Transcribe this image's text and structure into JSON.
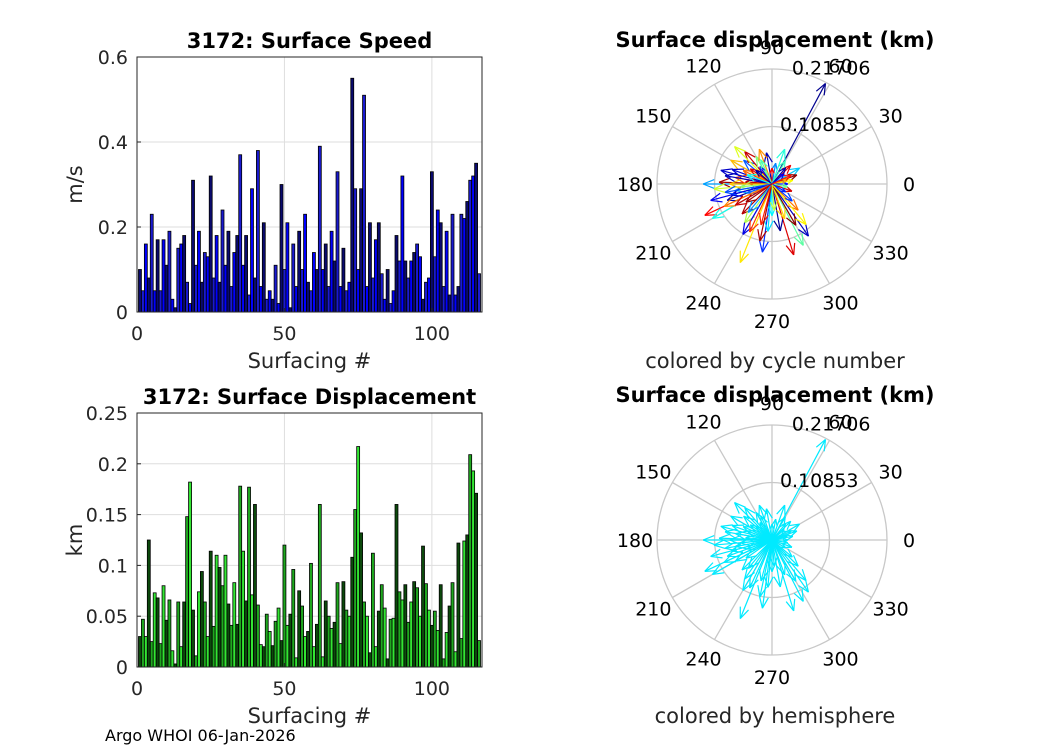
{
  "footer": "Argo WHOI 06-Jan-2026",
  "chart_data": [
    {
      "type": "bar",
      "title": "3172: Surface Speed",
      "xlabel": "Surfacing #",
      "ylabel": "m/s",
      "xlim": [
        0,
        117
      ],
      "ylim": [
        0,
        0.6
      ],
      "xticks": [
        "0",
        "50",
        "100"
      ],
      "yticks": [
        "0",
        "0.2",
        "0.4",
        "0.6"
      ],
      "grid": true,
      "colors": [
        "#0a0a6e",
        "#1a1ad0",
        "#0000ff"
      ],
      "x": [
        1,
        2,
        3,
        4,
        5,
        6,
        7,
        8,
        9,
        10,
        11,
        12,
        13,
        14,
        15,
        16,
        17,
        18,
        19,
        20,
        21,
        22,
        23,
        24,
        25,
        26,
        27,
        28,
        29,
        30,
        31,
        32,
        33,
        34,
        35,
        36,
        37,
        38,
        39,
        40,
        41,
        42,
        43,
        44,
        45,
        46,
        47,
        48,
        49,
        50,
        51,
        52,
        53,
        54,
        55,
        56,
        57,
        58,
        59,
        60,
        61,
        62,
        63,
        64,
        65,
        66,
        67,
        68,
        69,
        70,
        71,
        72,
        73,
        74,
        75,
        76,
        77,
        78,
        79,
        80,
        81,
        82,
        83,
        84,
        85,
        86,
        87,
        88,
        89,
        90,
        91,
        92,
        93,
        94,
        95,
        96,
        97,
        98,
        99,
        100,
        101,
        102,
        103,
        104,
        105,
        106,
        107,
        108,
        109,
        110,
        111,
        112,
        113,
        114,
        115,
        116
      ],
      "values": [
        0.1,
        0.05,
        0.16,
        0.08,
        0.23,
        0.05,
        0.17,
        0.05,
        0.17,
        0.11,
        0.19,
        0.03,
        0.01,
        0.15,
        0.16,
        0.18,
        0.07,
        0.02,
        0.31,
        0.11,
        0.19,
        0.07,
        0.14,
        0.13,
        0.32,
        0.08,
        0.18,
        0.07,
        0.24,
        0.11,
        0.19,
        0.06,
        0.14,
        0.18,
        0.37,
        0.11,
        0.18,
        0.04,
        0.29,
        0.08,
        0.38,
        0.06,
        0.21,
        0.03,
        0.05,
        0.03,
        0.11,
        0.02,
        0.3,
        0.1,
        0.21,
        0.01,
        0.16,
        0.06,
        0.19,
        0.1,
        0.23,
        0.07,
        0.05,
        0.14,
        0.1,
        0.39,
        0.1,
        0.16,
        0.06,
        0.19,
        0.12,
        0.33,
        0.06,
        0.15,
        0.05,
        0.07,
        0.55,
        0.29,
        0.1,
        0.29,
        0.51,
        0.06,
        0.21,
        0.08,
        0.17,
        0.21,
        0.09,
        0.03,
        0.1,
        0.02,
        0.05,
        0.18,
        0.12,
        0.32,
        0.12,
        0.08,
        0.12,
        0.14,
        0.16,
        0.13,
        0.03,
        0.07,
        0.08,
        0.33,
        0.13,
        0.24,
        0.21,
        0.06,
        0.19,
        0.04,
        0.23,
        0.04,
        0.06,
        0.23,
        0.22,
        0.26,
        0.31,
        0.32,
        0.35,
        0.09
      ]
    },
    {
      "type": "polar",
      "title": "Surface displacement (km)",
      "caption": "colored by cycle number",
      "rlim": [
        0,
        0.21706
      ],
      "rticks": [
        "0.10853",
        "0.21706"
      ],
      "angle_labels": [
        "0",
        "30",
        "60",
        "90",
        "120",
        "150",
        "180",
        "210",
        "240",
        "270",
        "300",
        "330"
      ],
      "colormap": [
        "#00008f",
        "#0000ff",
        "#00ffff",
        "#ffff00",
        "#ff0000",
        "#800000"
      ],
      "vectors_deg_km": [
        [
          62,
          0.215
        ],
        [
          248,
          0.16
        ],
        [
          262,
          0.13
        ],
        [
          287,
          0.14
        ],
        [
          297,
          0.13
        ],
        [
          305,
          0.12
        ],
        [
          315,
          0.07
        ],
        [
          180,
          0.13
        ],
        [
          178,
          0.1
        ],
        [
          185,
          0.11
        ],
        [
          195,
          0.12
        ],
        [
          205,
          0.14
        ],
        [
          210,
          0.13
        ],
        [
          200,
          0.09
        ],
        [
          150,
          0.09
        ],
        [
          140,
          0.07
        ],
        [
          130,
          0.08
        ],
        [
          120,
          0.06
        ],
        [
          160,
          0.08
        ],
        [
          170,
          0.07
        ],
        [
          30,
          0.06
        ],
        [
          20,
          0.05
        ],
        [
          10,
          0.04
        ],
        [
          0,
          0.03
        ],
        [
          45,
          0.05
        ],
        [
          60,
          0.05
        ],
        [
          100,
          0.06
        ],
        [
          110,
          0.07
        ],
        [
          80,
          0.04
        ],
        [
          225,
          0.08
        ],
        [
          235,
          0.09
        ],
        [
          240,
          0.11
        ],
        [
          255,
          0.08
        ],
        [
          270,
          0.06
        ],
        [
          280,
          0.09
        ],
        [
          290,
          0.07
        ],
        [
          320,
          0.05
        ],
        [
          340,
          0.04
        ],
        [
          350,
          0.03
        ],
        [
          165,
          0.1
        ],
        [
          155,
          0.06
        ],
        [
          190,
          0.07
        ],
        [
          215,
          0.06
        ],
        [
          135,
          0.1
        ],
        [
          125,
          0.04
        ],
        [
          90,
          0.03
        ],
        [
          70,
          0.07
        ],
        [
          50,
          0.04
        ],
        [
          15,
          0.03
        ],
        [
          200,
          0.05
        ],
        [
          175,
          0.05
        ],
        [
          185,
          0.06
        ],
        [
          195,
          0.08
        ],
        [
          245,
          0.1
        ],
        [
          265,
          0.09
        ],
        [
          300,
          0.09
        ],
        [
          310,
          0.1
        ],
        [
          330,
          0.03
        ],
        [
          145,
          0.05
        ],
        [
          115,
          0.05
        ],
        [
          170,
          0.09
        ],
        [
          205,
          0.1
        ],
        [
          230,
          0.07
        ],
        [
          258,
          0.11
        ],
        [
          275,
          0.05
        ],
        [
          40,
          0.03
        ],
        [
          25,
          0.04
        ],
        [
          160,
          0.05
        ],
        [
          140,
          0.04
        ],
        [
          180,
          0.08
        ],
        [
          190,
          0.09
        ],
        [
          210,
          0.08
        ]
      ]
    },
    {
      "type": "bar",
      "title": "3172: Surface Displacement",
      "xlabel": "Surfacing #",
      "ylabel": "km",
      "xlim": [
        0,
        117
      ],
      "ylim": [
        0,
        0.25
      ],
      "xticks": [
        "0",
        "50",
        "100"
      ],
      "yticks": [
        "0",
        "0.05",
        "0.1",
        "0.15",
        "0.2",
        "0.25"
      ],
      "grid": true,
      "colors": [
        "#0c4a0c",
        "#1fa81f",
        "#33e633"
      ],
      "x": [
        1,
        2,
        3,
        4,
        5,
        6,
        7,
        8,
        9,
        10,
        11,
        12,
        13,
        14,
        15,
        16,
        17,
        18,
        19,
        20,
        21,
        22,
        23,
        24,
        25,
        26,
        27,
        28,
        29,
        30,
        31,
        32,
        33,
        34,
        35,
        36,
        37,
        38,
        39,
        40,
        41,
        42,
        43,
        44,
        45,
        46,
        47,
        48,
        49,
        50,
        51,
        52,
        53,
        54,
        55,
        56,
        57,
        58,
        59,
        60,
        61,
        62,
        63,
        64,
        65,
        66,
        67,
        68,
        69,
        70,
        71,
        72,
        73,
        74,
        75,
        76,
        77,
        78,
        79,
        80,
        81,
        82,
        83,
        84,
        85,
        86,
        87,
        88,
        89,
        90,
        91,
        92,
        93,
        94,
        95,
        96,
        97,
        98,
        99,
        100,
        101,
        102,
        103,
        104,
        105,
        106,
        107,
        108,
        109,
        110,
        111,
        112,
        113,
        114,
        115,
        116
      ],
      "values": [
        0.03,
        0.047,
        0.03,
        0.125,
        0.025,
        0.073,
        0.068,
        0.023,
        0.08,
        0.046,
        0.066,
        0.016,
        0.003,
        0.064,
        0.02,
        0.064,
        0.148,
        0.182,
        0.056,
        0.011,
        0.074,
        0.094,
        0.064,
        0.03,
        0.114,
        0.04,
        0.11,
        0.098,
        0.08,
        0.11,
        0.062,
        0.041,
        0.083,
        0.042,
        0.178,
        0.114,
        0.065,
        0.177,
        0.071,
        0.16,
        0.061,
        0.022,
        0.02,
        0.052,
        0.035,
        0.021,
        0.045,
        0.058,
        0.026,
        0.12,
        0.041,
        0.052,
        0.096,
        0.009,
        0.075,
        0.06,
        0.03,
        0.035,
        0.102,
        0.02,
        0.042,
        0.16,
        0.01,
        0.065,
        0.05,
        0.038,
        0.044,
        0.083,
        0.023,
        0.084,
        0.056,
        0.05,
        0.108,
        0.155,
        0.217,
        0.132,
        0.064,
        0.05,
        0.014,
        0.112,
        0.02,
        0.055,
        0.081,
        0.058,
        0.008,
        0.047,
        0.048,
        0.16,
        0.074,
        0.066,
        0.081,
        0.044,
        0.064,
        0.084,
        0.078,
        0.05,
        0.119,
        0.082,
        0.056,
        0.041,
        0.055,
        0.036,
        0.081,
        0.008,
        0.034,
        0.06,
        0.083,
        0.015,
        0.122,
        0.028,
        0.124,
        0.13,
        0.209,
        0.193,
        0.171,
        0.026
      ]
    },
    {
      "type": "polar",
      "title": "Surface displacement (km)",
      "caption": "colored by hemisphere",
      "rlim": [
        0,
        0.21706
      ],
      "rticks": [
        "0.10853",
        "0.21706"
      ],
      "angle_labels": [
        "0",
        "30",
        "60",
        "90",
        "120",
        "150",
        "180",
        "210",
        "240",
        "270",
        "300",
        "330"
      ],
      "color": "#00eaff",
      "vectors_deg_km": [
        [
          62,
          0.215
        ],
        [
          248,
          0.16
        ],
        [
          262,
          0.13
        ],
        [
          287,
          0.14
        ],
        [
          297,
          0.13
        ],
        [
          305,
          0.12
        ],
        [
          315,
          0.07
        ],
        [
          180,
          0.13
        ],
        [
          178,
          0.1
        ],
        [
          185,
          0.11
        ],
        [
          195,
          0.12
        ],
        [
          205,
          0.14
        ],
        [
          210,
          0.13
        ],
        [
          200,
          0.09
        ],
        [
          150,
          0.09
        ],
        [
          140,
          0.07
        ],
        [
          130,
          0.08
        ],
        [
          120,
          0.06
        ],
        [
          160,
          0.08
        ],
        [
          170,
          0.07
        ],
        [
          30,
          0.06
        ],
        [
          20,
          0.05
        ],
        [
          10,
          0.04
        ],
        [
          0,
          0.03
        ],
        [
          45,
          0.05
        ],
        [
          60,
          0.05
        ],
        [
          100,
          0.06
        ],
        [
          110,
          0.07
        ],
        [
          80,
          0.04
        ],
        [
          225,
          0.08
        ],
        [
          235,
          0.09
        ],
        [
          240,
          0.11
        ],
        [
          255,
          0.08
        ],
        [
          270,
          0.06
        ],
        [
          280,
          0.09
        ],
        [
          290,
          0.07
        ],
        [
          320,
          0.05
        ],
        [
          340,
          0.04
        ],
        [
          350,
          0.03
        ],
        [
          165,
          0.1
        ],
        [
          155,
          0.06
        ],
        [
          190,
          0.07
        ],
        [
          215,
          0.06
        ],
        [
          135,
          0.1
        ],
        [
          125,
          0.04
        ],
        [
          90,
          0.03
        ],
        [
          70,
          0.07
        ],
        [
          50,
          0.04
        ],
        [
          15,
          0.03
        ],
        [
          200,
          0.05
        ],
        [
          175,
          0.05
        ],
        [
          185,
          0.06
        ],
        [
          195,
          0.08
        ],
        [
          245,
          0.1
        ],
        [
          265,
          0.09
        ],
        [
          300,
          0.09
        ],
        [
          310,
          0.1
        ],
        [
          330,
          0.03
        ],
        [
          145,
          0.05
        ],
        [
          115,
          0.05
        ],
        [
          170,
          0.09
        ],
        [
          205,
          0.1
        ],
        [
          230,
          0.07
        ],
        [
          258,
          0.11
        ],
        [
          275,
          0.05
        ],
        [
          40,
          0.03
        ],
        [
          25,
          0.04
        ],
        [
          160,
          0.05
        ],
        [
          140,
          0.04
        ],
        [
          180,
          0.08
        ],
        [
          190,
          0.09
        ],
        [
          210,
          0.08
        ]
      ]
    }
  ]
}
